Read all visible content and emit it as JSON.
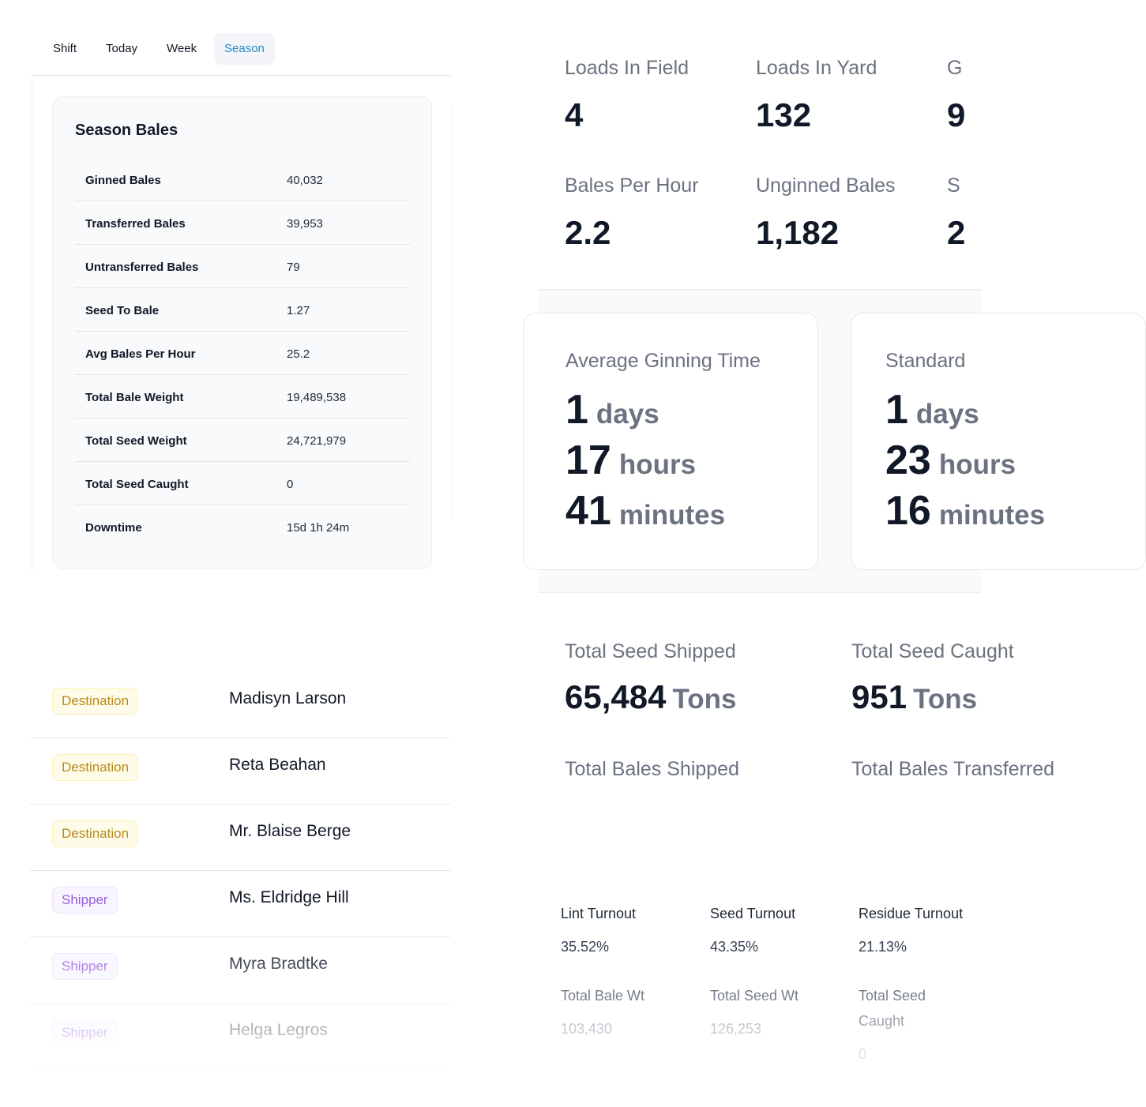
{
  "tabs": [
    {
      "label": "Shift"
    },
    {
      "label": "Today"
    },
    {
      "label": "Week"
    },
    {
      "label": "Season",
      "active": true
    }
  ],
  "season_bales": {
    "title": "Season Bales",
    "rows": [
      {
        "label": "Ginned Bales",
        "value": "40,032"
      },
      {
        "label": "Transferred Bales",
        "value": "39,953"
      },
      {
        "label": "Untransferred Bales",
        "value": "79"
      },
      {
        "label": "Seed To Bale",
        "value": "1.27"
      },
      {
        "label": "Avg Bales Per Hour",
        "value": "25.2"
      },
      {
        "label": "Total Bale Weight",
        "value": "19,489,538"
      },
      {
        "label": "Total Seed Weight",
        "value": "24,721,979"
      },
      {
        "label": "Total Seed Caught",
        "value": "0"
      },
      {
        "label": "Downtime",
        "value": "15d 1h 24m"
      }
    ]
  },
  "partners": [
    {
      "role": "Destination",
      "name": "Madisyn Larson"
    },
    {
      "role": "Destination",
      "name": "Reta Beahan"
    },
    {
      "role": "Destination",
      "name": "Mr. Blaise Berge"
    },
    {
      "role": "Shipper",
      "name": "Ms. Eldridge Hill"
    },
    {
      "role": "Shipper",
      "name": "Myra Bradtke"
    },
    {
      "role": "Shipper",
      "name": "Helga Legros"
    }
  ],
  "stats": {
    "loads_in_field": {
      "label": "Loads In Field",
      "value": "4"
    },
    "loads_in_yard": {
      "label": "Loads In Yard",
      "value": "132"
    },
    "col3_label_partial": "G",
    "col3_value_partial": "9",
    "bales_per_hour": {
      "label": "Bales Per Hour",
      "value": "2.2"
    },
    "unginned_bales": {
      "label": "Unginned Bales",
      "value": "1,182"
    },
    "col6_label_partial": "S",
    "col6_value_partial": "2"
  },
  "ginning_time": {
    "average": {
      "title": "Average Ginning Time",
      "days": "1",
      "days_unit": "days",
      "hours": "17",
      "hours_unit": "hours",
      "minutes": "41",
      "minutes_unit": "minutes"
    },
    "standard": {
      "title": "Standard",
      "days": "1",
      "days_unit": "days",
      "hours": "23",
      "hours_unit": "hours",
      "minutes": "16",
      "minutes_unit": "minutes"
    }
  },
  "shipping": {
    "total_seed_shipped": {
      "label": "Total Seed Shipped",
      "value": "65,484",
      "unit": "Tons"
    },
    "total_seed_2": {
      "label": "Total Seed Caught",
      "value": "951",
      "unit": "Tons"
    },
    "total_bales_shipped": {
      "label": "Total Bales Shipped"
    },
    "total_bales_2": {
      "label": "Total Bales Transferred"
    }
  },
  "turnout": {
    "lint": {
      "label": "Lint Turnout",
      "value": "35.52%"
    },
    "seed": {
      "label": "Seed Turnout",
      "value": "43.35%"
    },
    "residue": {
      "label": "Residue Turnout",
      "value": "21.13%"
    },
    "total_bale_wt": {
      "label": "Total Bale Wt",
      "value": "103,430"
    },
    "total_seed_wt": {
      "label": "Total Seed Wt",
      "value": "126,253"
    },
    "total_seed_caught": {
      "label": "Total Seed Caught",
      "value": "0"
    }
  }
}
